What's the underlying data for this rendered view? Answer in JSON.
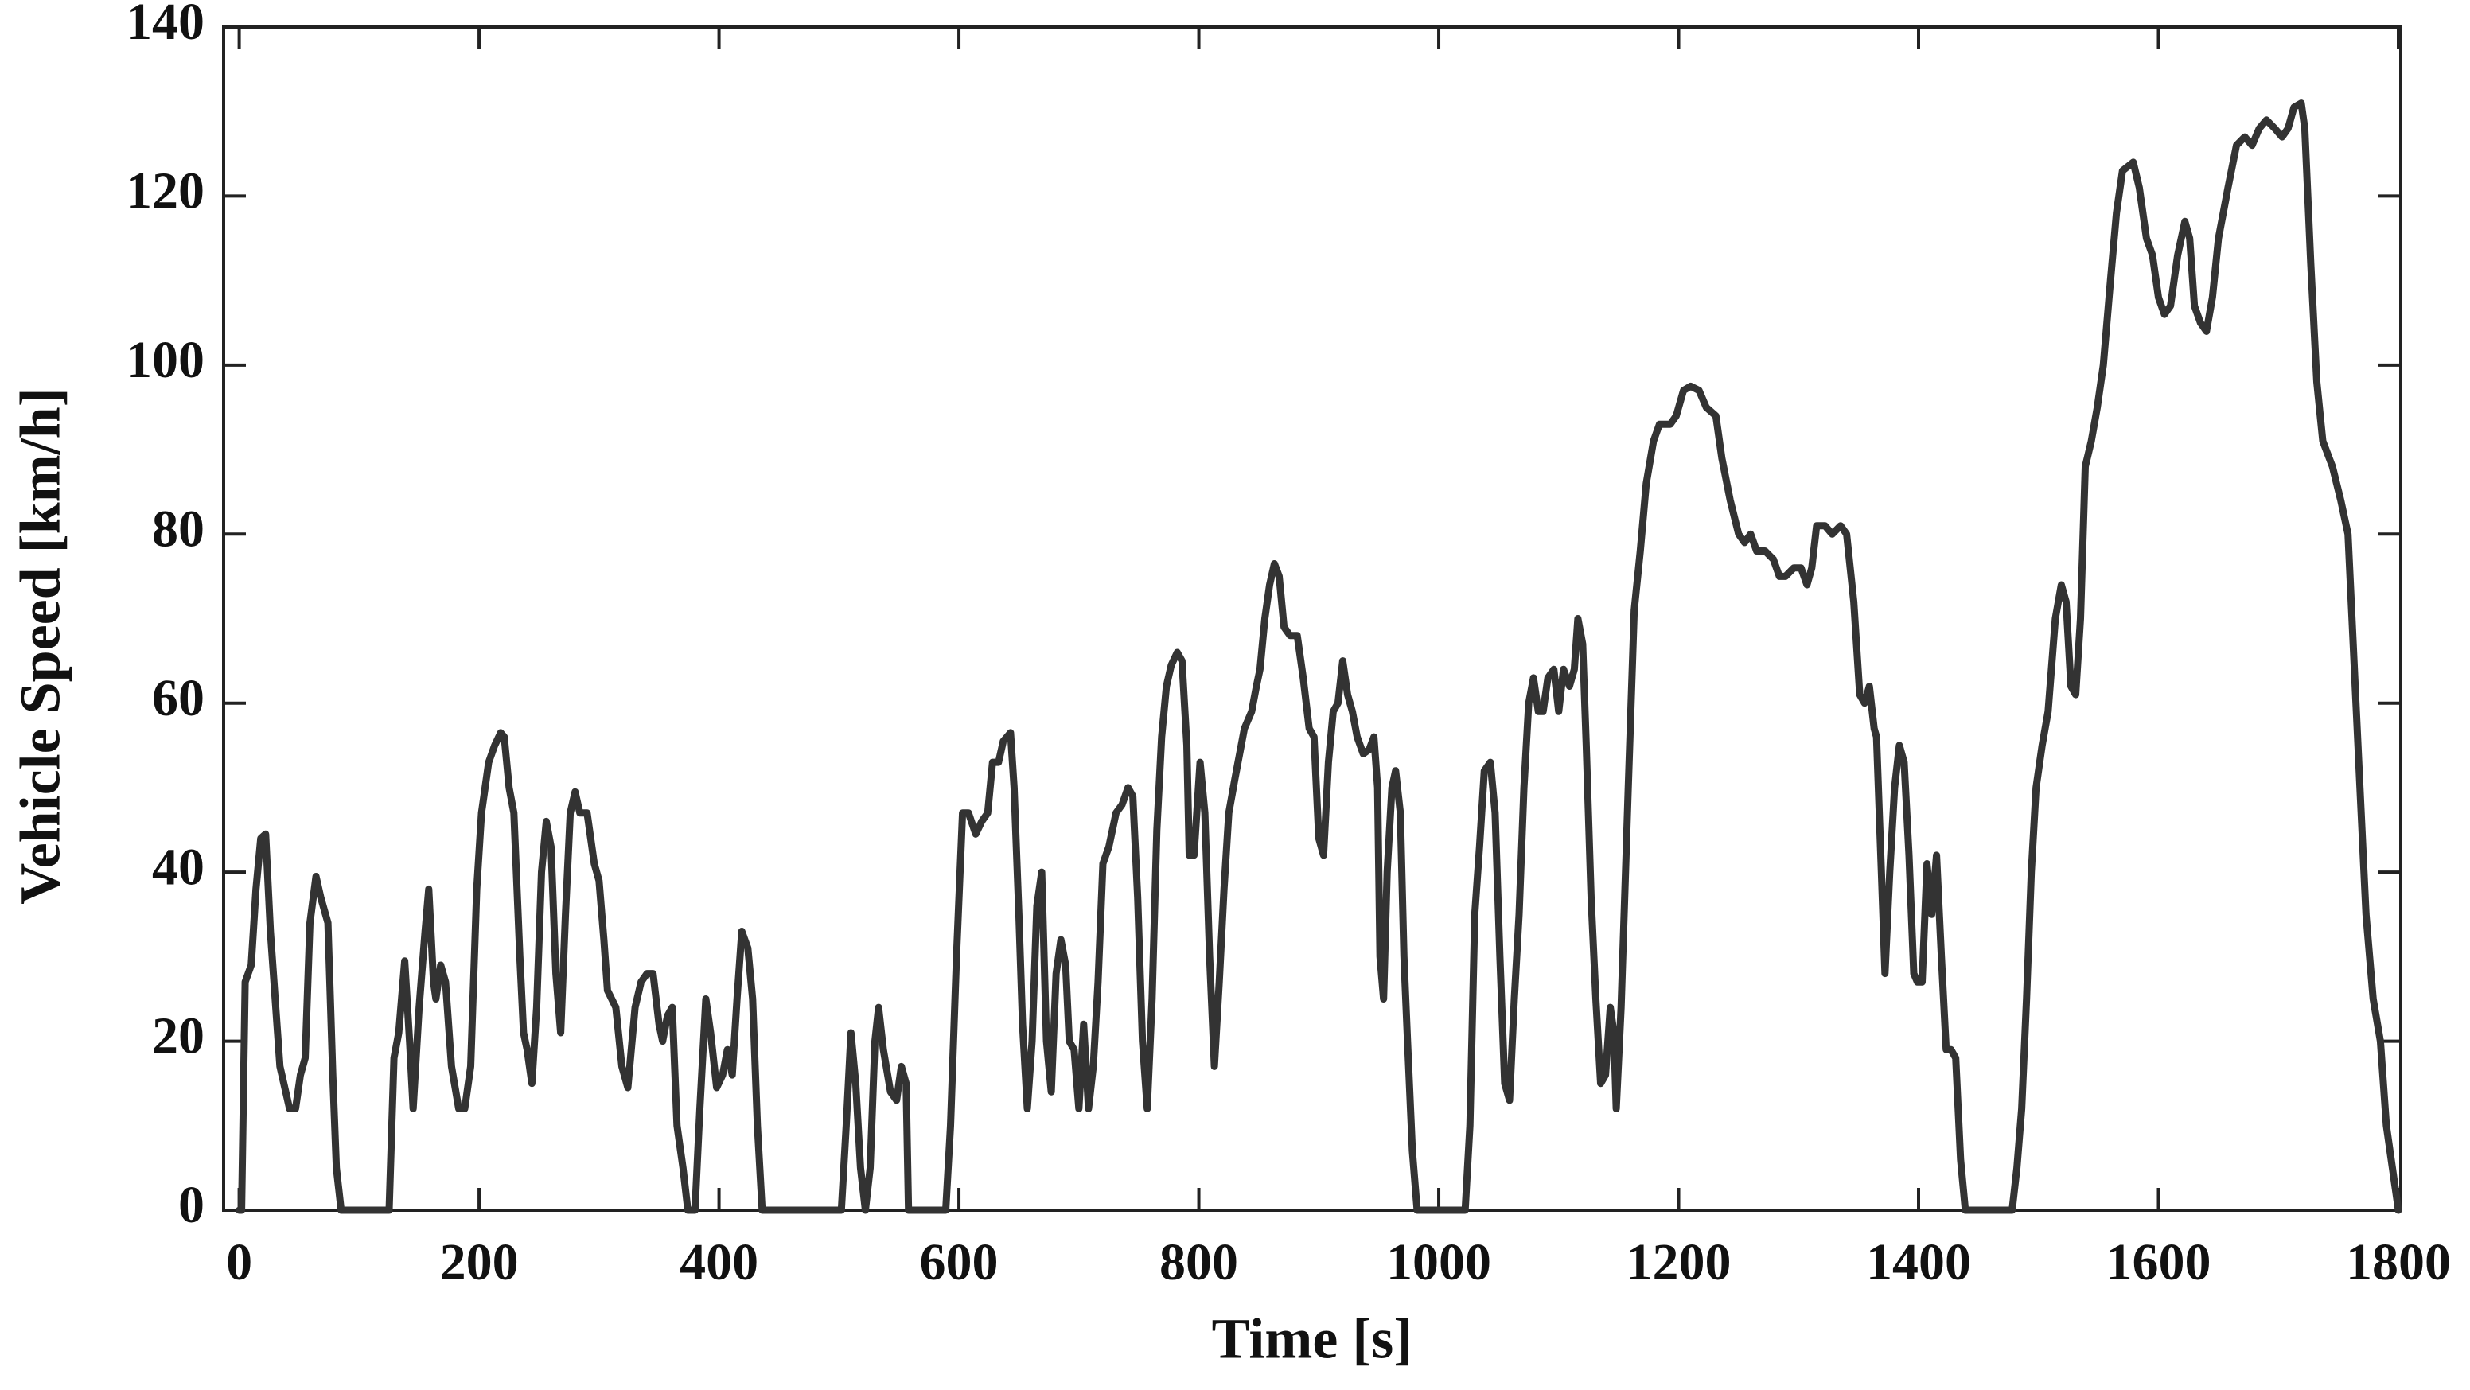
{
  "chart_data": {
    "type": "line",
    "xlabel": "Time [s]",
    "ylabel": "Vehicle Speed [km/h]",
    "color": "#333333",
    "xlim": [
      -13,
      1802
    ],
    "ylim": [
      0,
      140
    ],
    "xticks": [
      0,
      200,
      400,
      600,
      800,
      1000,
      1200,
      1400,
      1600,
      1800
    ],
    "yticks": [
      0,
      20,
      40,
      60,
      80,
      100,
      120,
      140
    ],
    "x": [
      0,
      2,
      5,
      10,
      14,
      18,
      22,
      26,
      32,
      34,
      42,
      47,
      51,
      55,
      59,
      64,
      68,
      74,
      78,
      81,
      85,
      125,
      129,
      133,
      138,
      142,
      145,
      150,
      155,
      158,
      162,
      164,
      168,
      172,
      177,
      183,
      188,
      193,
      198,
      202,
      208,
      213,
      218,
      221,
      225,
      229,
      234,
      237,
      240,
      244,
      248,
      252,
      256,
      260,
      264,
      268,
      272,
      276,
      280,
      284,
      290,
      296,
      300,
      304,
      307,
      314,
      319,
      324,
      330,
      335,
      340,
      345,
      350,
      353,
      357,
      361,
      365,
      370,
      374,
      380,
      384,
      389,
      393,
      398,
      403,
      407,
      411,
      415,
      419,
      424,
      428,
      432,
      436,
      502,
      506,
      510,
      514,
      518,
      522,
      526,
      530,
      533,
      537,
      543,
      548,
      552,
      556,
      558,
      589,
      593,
      598,
      603,
      608,
      614,
      619,
      624,
      628,
      633,
      637,
      643,
      646,
      650,
      653,
      657,
      661,
      665,
      669,
      673,
      677,
      681,
      685,
      689,
      692,
      696,
      700,
      704,
      708,
      712,
      716,
      720,
      725,
      731,
      736,
      741,
      745,
      749,
      753,
      757,
      761,
      765,
      769,
      773,
      777,
      782,
      786,
      790,
      792,
      796,
      801,
      805,
      809,
      813,
      817,
      821,
      825,
      830,
      834,
      838,
      844,
      848,
      851,
      855,
      859,
      863,
      867,
      871,
      876,
      882,
      887,
      892,
      896,
      900,
      904,
      908,
      912,
      916,
      920,
      924,
      928,
      932,
      937,
      942,
      946,
      949,
      951,
      954,
      957,
      961,
      964,
      968,
      971,
      974,
      978,
      982,
      1022,
      1026,
      1030,
      1034,
      1038,
      1043,
      1047,
      1051,
      1055,
      1059,
      1063,
      1067,
      1071,
      1075,
      1079,
      1083,
      1087,
      1091,
      1096,
      1100,
      1104,
      1109,
      1113,
      1116,
      1120,
      1123,
      1127,
      1131,
      1135,
      1139,
      1143,
      1146,
      1148,
      1152,
      1158,
      1163,
      1168,
      1173,
      1179,
      1184,
      1193,
      1198,
      1204,
      1210,
      1217,
      1223,
      1231,
      1236,
      1243,
      1250,
      1255,
      1260,
      1265,
      1272,
      1279,
      1284,
      1289,
      1296,
      1302,
      1307,
      1311,
      1315,
      1322,
      1328,
      1335,
      1340,
      1346,
      1351,
      1355,
      1359,
      1363,
      1365,
      1369,
      1372,
      1376,
      1380,
      1384,
      1388,
      1392,
      1396,
      1399,
      1403,
      1407,
      1411,
      1415,
      1419,
      1423,
      1427,
      1431,
      1435,
      1439,
      1478,
      1482,
      1486,
      1490,
      1494,
      1498,
      1503,
      1508,
      1514,
      1519,
      1523,
      1527,
      1531,
      1535,
      1539,
      1544,
      1549,
      1554,
      1560,
      1565,
      1570,
      1579,
      1584,
      1590,
      1595,
      1600,
      1605,
      1610,
      1616,
      1622,
      1626,
      1630,
      1635,
      1640,
      1645,
      1650,
      1658,
      1665,
      1672,
      1678,
      1684,
      1690,
      1697,
      1703,
      1708,
      1713,
      1719,
      1722,
      1727,
      1732,
      1737,
      1745,
      1752,
      1758,
      1763,
      1768,
      1773,
      1779,
      1785,
      1790,
      1800
    ],
    "values": [
      0,
      0,
      27,
      29,
      38,
      44,
      44.5,
      33,
      21,
      17,
      12,
      12,
      16,
      18,
      34,
      39.5,
      37,
      34,
      16,
      5,
      0,
      0,
      18,
      21,
      29.5,
      20,
      12,
      24,
      33,
      38,
      27,
      25,
      29,
      27,
      17,
      12,
      12,
      17,
      38,
      47,
      53,
      55,
      56.5,
      56,
      50,
      47,
      30,
      21,
      19,
      15,
      24,
      40,
      46,
      43,
      28,
      21,
      35,
      47,
      49.5,
      47,
      47,
      41,
      39,
      32,
      26,
      24,
      17,
      14.5,
      24,
      27,
      28,
      28,
      22,
      20,
      23,
      24,
      10,
      5,
      0,
      0,
      12,
      25,
      21,
      14.5,
      16,
      19,
      16,
      25,
      33,
      31,
      25,
      10,
      0,
      0,
      10,
      21,
      15,
      5,
      0,
      5,
      20,
      24,
      19,
      14,
      13,
      17,
      15,
      0,
      0,
      10,
      30,
      47,
      47,
      44.5,
      46,
      47,
      53,
      53,
      55.5,
      56.5,
      50,
      35,
      22,
      12,
      20,
      36,
      40,
      20,
      14,
      28,
      32,
      29,
      20,
      19,
      12,
      22,
      12,
      17,
      27,
      41,
      43,
      47,
      48,
      50,
      49,
      37,
      20,
      12,
      25,
      45,
      56,
      62,
      64.5,
      66,
      65,
      55,
      42,
      42,
      53,
      47,
      30,
      17,
      27,
      38,
      47,
      51,
      54,
      57,
      59,
      62,
      64,
      70,
      74,
      76.5,
      75,
      69,
      68,
      68,
      63,
      57,
      56,
      44,
      42,
      53,
      59,
      60,
      65,
      61,
      59,
      56,
      54,
      54.5,
      56,
      50,
      30,
      25,
      40,
      50,
      52,
      47,
      30,
      20,
      7,
      0,
      0,
      10,
      35,
      43,
      52,
      53,
      47,
      30,
      15,
      13,
      25,
      35,
      50,
      60,
      63,
      59,
      59,
      63,
      64,
      59,
      64,
      62,
      64,
      70,
      67,
      55,
      37,
      25,
      15,
      16,
      24,
      21,
      12,
      24,
      50,
      71,
      78,
      86,
      91,
      93,
      93,
      94,
      97,
      97.5,
      97,
      95,
      94,
      89,
      84,
      80,
      79,
      80,
      78,
      78,
      77,
      75,
      75,
      76,
      76,
      74,
      76,
      81,
      81,
      80,
      81,
      80,
      72,
      61,
      60,
      62,
      57,
      56,
      40,
      28,
      40,
      50,
      55,
      53,
      42,
      28,
      27,
      27,
      41,
      35,
      42,
      30,
      19,
      19,
      18,
      6,
      0,
      0,
      5,
      12,
      25,
      40,
      50,
      55,
      59,
      70,
      74,
      72,
      62,
      61,
      70,
      88,
      91,
      95,
      100,
      110,
      118,
      123,
      124,
      121,
      115,
      113,
      108,
      106,
      107,
      113,
      117,
      115,
      107,
      105,
      104,
      108,
      115,
      121,
      126,
      127,
      126,
      128,
      129,
      128,
      127,
      128,
      130.5,
      131,
      128,
      112,
      98,
      91,
      88,
      84,
      80,
      65,
      50,
      35,
      25,
      20,
      10,
      0
    ]
  }
}
